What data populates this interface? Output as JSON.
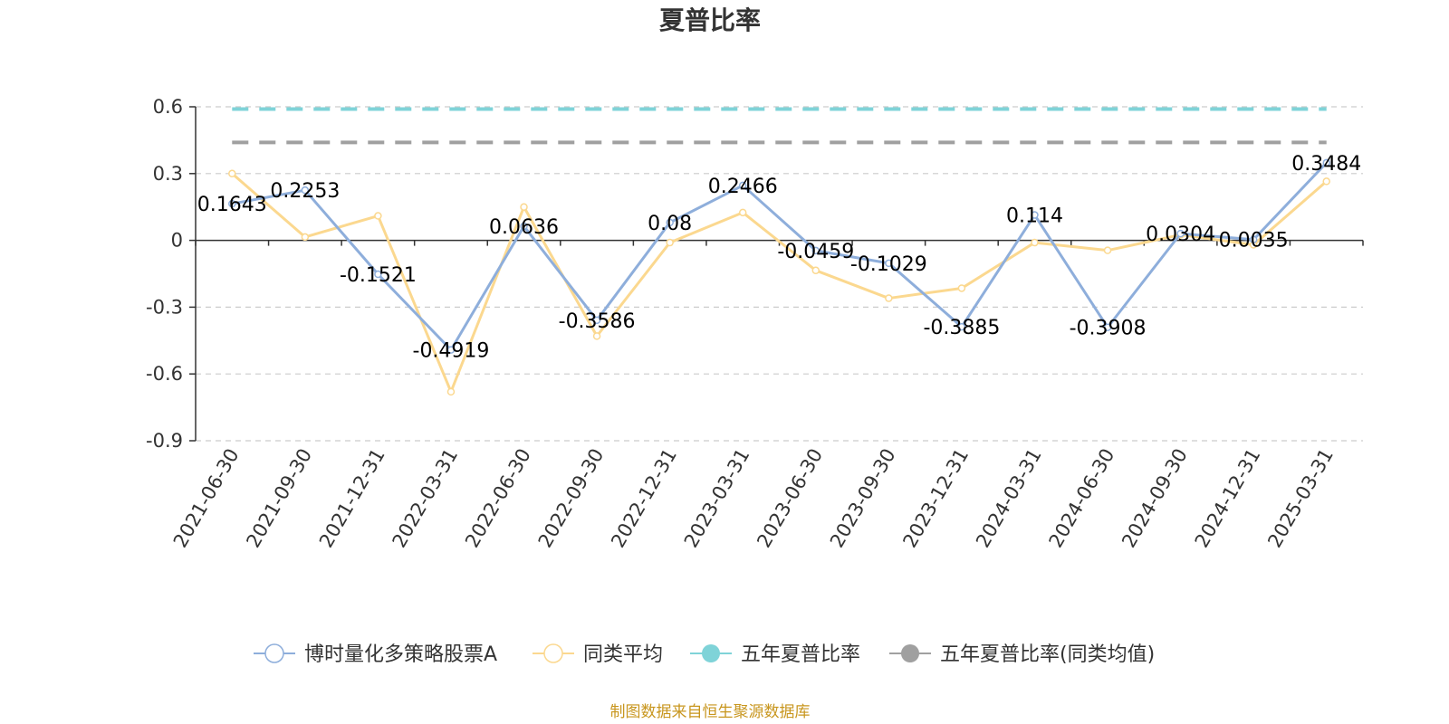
{
  "title": "夏普比率",
  "source": "制图数据来自恒生聚源数据库",
  "chart_data": {
    "type": "line",
    "title": "夏普比率",
    "xlabel": "",
    "ylabel": "",
    "ylim": [
      -0.9,
      0.6
    ],
    "yticks": [
      0.6,
      0.3,
      0,
      -0.3,
      -0.6,
      -0.9
    ],
    "grid": true,
    "legend_position": "bottom",
    "x": [
      "2021-06-30",
      "2021-09-30",
      "2021-12-31",
      "2022-03-31",
      "2022-06-30",
      "2022-09-30",
      "2022-12-31",
      "2023-03-31",
      "2023-06-30",
      "2023-09-30",
      "2023-12-31",
      "2024-03-31",
      "2024-06-30",
      "2024-09-30",
      "2024-12-31",
      "2025-03-31"
    ],
    "series": [
      {
        "name": "博时量化多策略股票A",
        "color": "#8eaedb",
        "values": [
          0.1643,
          0.2253,
          -0.1521,
          -0.4919,
          0.0636,
          -0.3586,
          0.08,
          0.2466,
          -0.0459,
          -0.1029,
          -0.3885,
          0.114,
          -0.3908,
          0.0304,
          0.0035,
          0.3484
        ],
        "labels": [
          "0.1643",
          "0.2253",
          "-0.1521",
          "-0.4919",
          "0.0636",
          "-0.3586",
          "0.08",
          "0.2466",
          "-0.0459",
          "-0.1029",
          "-0.3885",
          "0.114",
          "-0.3908",
          "0.0304",
          "0.0035",
          "0.3484"
        ]
      },
      {
        "name": "同类平均",
        "color": "#fbd88f",
        "values": [
          0.3,
          0.015,
          0.11,
          -0.68,
          0.15,
          -0.43,
          -0.01,
          0.125,
          -0.135,
          -0.26,
          -0.215,
          -0.01,
          -0.045,
          0.025,
          -0.02,
          0.265
        ]
      },
      {
        "name": "五年夏普比率",
        "color": "#7fd3d8",
        "type": "reference",
        "value": 0.59
      },
      {
        "name": "五年夏普比率(同类均值)",
        "color": "#a0a0a0",
        "type": "reference",
        "value": 0.44
      }
    ]
  }
}
